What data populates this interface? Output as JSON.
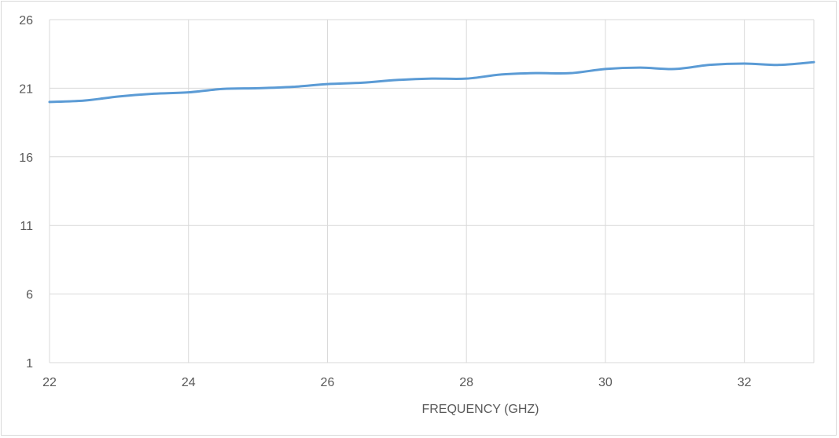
{
  "chart_data": {
    "type": "line",
    "title": "",
    "xlabel": "FREQUENCY (GHZ)",
    "ylabel": "",
    "xlim": [
      22,
      33
    ],
    "ylim": [
      1,
      26
    ],
    "x_ticks": [
      22,
      24,
      26,
      28,
      30,
      32
    ],
    "y_ticks": [
      1,
      6,
      11,
      16,
      21,
      26
    ],
    "grid": true,
    "legend": "none",
    "line_color": "#5b9bd5",
    "grid_color": "#d9d9d9",
    "series": [
      {
        "x": [
          22,
          22.5,
          23,
          23.5,
          24,
          24.5,
          25,
          25.5,
          26,
          26.5,
          27,
          27.5,
          28,
          28.5,
          29,
          29.5,
          30,
          30.5,
          31,
          31.5,
          32,
          32.5,
          33
        ],
        "values": [
          20.0,
          20.1,
          20.4,
          20.6,
          20.7,
          20.95,
          21.0,
          21.1,
          21.3,
          21.4,
          21.6,
          21.7,
          21.7,
          22.0,
          22.1,
          22.1,
          22.4,
          22.5,
          22.4,
          22.7,
          22.8,
          22.7,
          22.9
        ]
      }
    ]
  }
}
